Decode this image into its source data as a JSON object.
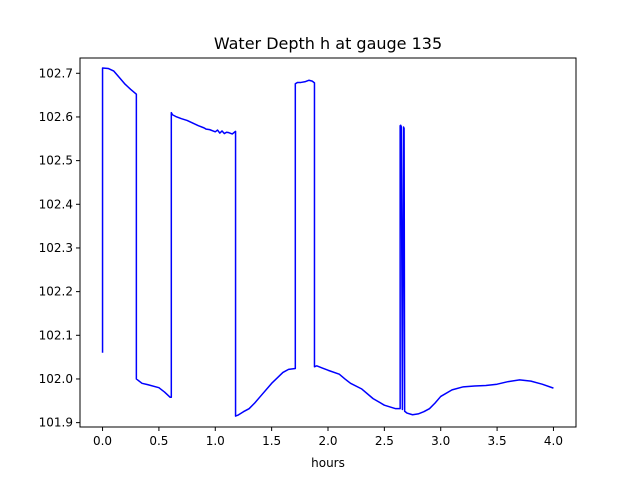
{
  "chart_data": {
    "type": "line",
    "title": "Water Depth h at gauge 135",
    "xlabel": "hours",
    "ylabel": "",
    "xlim": [
      -0.2,
      4.2
    ],
    "ylim": [
      101.89,
      102.735
    ],
    "xticks": [
      0.0,
      0.5,
      1.0,
      1.5,
      2.0,
      2.5,
      3.0,
      3.5,
      4.0
    ],
    "xtick_labels": [
      "0.0",
      "0.5",
      "1.0",
      "1.5",
      "2.0",
      "2.5",
      "3.0",
      "3.5",
      "4.0"
    ],
    "yticks": [
      101.9,
      102.0,
      102.1,
      102.2,
      102.3,
      102.4,
      102.5,
      102.6,
      102.7
    ],
    "ytick_labels": [
      "101.9",
      "102.0",
      "102.1",
      "102.2",
      "102.3",
      "102.4",
      "102.5",
      "102.6",
      "102.7"
    ],
    "grid": false,
    "series": [
      {
        "name": "",
        "color": "#0000ff",
        "x": [
          0.0,
          0.0,
          0.05,
          0.1,
          0.15,
          0.2,
          0.25,
          0.3,
          0.3,
          0.3,
          0.35,
          0.4,
          0.5,
          0.55,
          0.6,
          0.61,
          0.61,
          0.62,
          0.65,
          0.7,
          0.75,
          0.8,
          0.85,
          0.9,
          0.92,
          0.95,
          0.98,
          1.0,
          1.02,
          1.04,
          1.06,
          1.08,
          1.1,
          1.12,
          1.15,
          1.18,
          1.18,
          1.2,
          1.25,
          1.3,
          1.35,
          1.4,
          1.5,
          1.6,
          1.65,
          1.71,
          1.71,
          1.73,
          1.76,
          1.8,
          1.83,
          1.86,
          1.88,
          1.88,
          1.9,
          1.95,
          2.0,
          2.1,
          2.15,
          2.2,
          2.3,
          2.4,
          2.5,
          2.6,
          2.64,
          2.64,
          2.645,
          2.65,
          2.66,
          2.67,
          2.675,
          2.68,
          2.68,
          2.7,
          2.75,
          2.8,
          2.85,
          2.9,
          2.95,
          3.0,
          3.1,
          3.2,
          3.3,
          3.4,
          3.5,
          3.6,
          3.7,
          3.8,
          3.9,
          4.0
        ],
        "y": [
          102.06,
          102.712,
          102.711,
          102.705,
          102.69,
          102.675,
          102.663,
          102.652,
          102.652,
          102.0,
          101.99,
          101.987,
          101.98,
          101.97,
          101.958,
          101.958,
          102.61,
          102.605,
          102.601,
          102.596,
          102.592,
          102.586,
          102.58,
          102.575,
          102.572,
          102.571,
          102.568,
          102.566,
          102.57,
          102.563,
          102.568,
          102.562,
          102.565,
          102.564,
          102.561,
          102.567,
          101.915,
          101.917,
          101.925,
          101.932,
          101.945,
          101.96,
          101.99,
          102.015,
          102.022,
          102.024,
          102.676,
          102.679,
          102.679,
          102.681,
          102.684,
          102.682,
          102.678,
          102.028,
          102.03,
          102.025,
          102.02,
          102.011,
          102.0,
          101.99,
          101.977,
          101.955,
          101.94,
          101.932,
          101.932,
          102.58,
          102.581,
          102.578,
          101.93,
          102.577,
          102.574,
          101.927,
          101.926,
          101.922,
          101.918,
          101.92,
          101.925,
          101.932,
          101.945,
          101.96,
          101.975,
          101.982,
          101.984,
          101.985,
          101.988,
          101.994,
          101.998,
          101.995,
          101.988,
          101.979
        ]
      }
    ]
  }
}
